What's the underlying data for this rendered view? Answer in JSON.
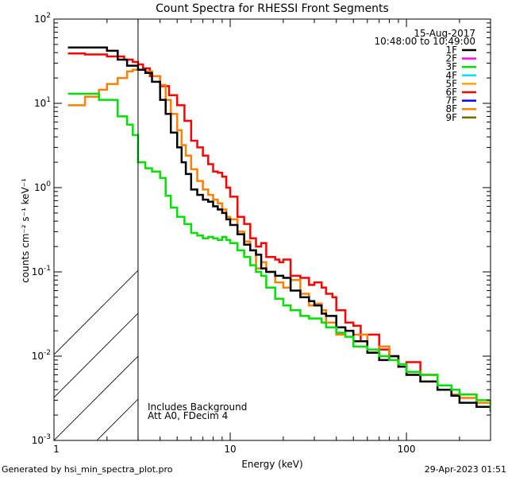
{
  "chart_data": {
    "type": "line",
    "title": "Count Spectra for RHESSI Front Segments",
    "xlabel": "Energy (keV)",
    "ylabel": "counts cm⁻² s⁻¹ keV⁻¹",
    "xscale": "log",
    "yscale": "log",
    "xlim": [
      1,
      300
    ],
    "ylim": [
      0.001,
      100
    ],
    "x_ticks": [
      {
        "v": 10,
        "label": "10"
      },
      {
        "v": 100,
        "label": "100"
      }
    ],
    "x_tick_minor": [
      2,
      3,
      4,
      5,
      6,
      7,
      8,
      9,
      20,
      30,
      40,
      50,
      60,
      70,
      80,
      90,
      200,
      300
    ],
    "y_ticks": [
      {
        "v": 0.001,
        "m": "10",
        "e": "-3"
      },
      {
        "v": 0.01,
        "m": "10",
        "e": "-2"
      },
      {
        "v": 0.1,
        "m": "10",
        "e": "-1"
      },
      {
        "v": 1,
        "m": "10",
        "e": "0"
      },
      {
        "v": 10,
        "m": "10",
        "e": "1"
      },
      {
        "v": 100,
        "m": "10",
        "e": "2"
      }
    ],
    "x_one_label": "1",
    "date": "15-Aug-2017",
    "time_range": "10:48:00 to 10:49:00",
    "hatch_boundary_kev": 3,
    "annotations": [
      "Includes Background",
      "Att A0, FDecim 4"
    ],
    "legend": [
      {
        "name": "1F",
        "color": "#000000"
      },
      {
        "name": "2F",
        "color": "#ff00ff"
      },
      {
        "name": "3F",
        "color": "#00e000"
      },
      {
        "name": "4F",
        "color": "#00e0ff"
      },
      {
        "name": "5F",
        "color": "#ffa500"
      },
      {
        "name": "6F",
        "color": "#ff0000"
      },
      {
        "name": "7F",
        "color": "#0000ff"
      },
      {
        "name": "8F",
        "color": "#ff7f00"
      },
      {
        "name": "9F",
        "color": "#707000"
      }
    ],
    "series": [
      {
        "name": "6F",
        "color": "#ff0000",
        "x": [
          1.2,
          1.5,
          2,
          2.5,
          2.8,
          3.0,
          3.2,
          3.5,
          4.0,
          4.5,
          5.0,
          5.5,
          6.0,
          6.5,
          7.0,
          7.5,
          8,
          8.5,
          9,
          9.5,
          10,
          11,
          12,
          13,
          14,
          15,
          16,
          17,
          18,
          19,
          20,
          22,
          25,
          28,
          30,
          33,
          35,
          38,
          40,
          45,
          50,
          55,
          60,
          70,
          80,
          90,
          100,
          120,
          150,
          180,
          200,
          250,
          300
        ],
        "y": [
          39,
          38,
          36,
          33,
          31,
          29,
          26,
          21,
          16,
          12.5,
          9.5,
          6.2,
          3.6,
          3.0,
          2.4,
          1.9,
          1.55,
          1.5,
          1.35,
          1.0,
          0.78,
          0.45,
          0.37,
          0.25,
          0.2,
          0.22,
          0.15,
          0.15,
          0.14,
          0.13,
          0.14,
          0.09,
          0.085,
          0.07,
          0.075,
          0.065,
          0.055,
          0.05,
          0.035,
          0.025,
          0.023,
          0.015,
          0.018,
          0.012,
          0.01,
          0.0075,
          0.0085,
          0.006,
          0.004,
          0.0035,
          0.0035,
          0.0025,
          0.0022
        ]
      },
      {
        "name": "8F",
        "color": "#ff7f00",
        "x": [
          1.2,
          1.3,
          1.5,
          1.8,
          2.0,
          2.3,
          2.6,
          2.8,
          3.0,
          3.3,
          3.6,
          4.0,
          4.3,
          4.6,
          5.0,
          5.3,
          5.6,
          6,
          6.5,
          7,
          7.5,
          8,
          8.5,
          9,
          9.5,
          10,
          11,
          12,
          13,
          14,
          15,
          16,
          18,
          20,
          22,
          25,
          28,
          30,
          33,
          35,
          40,
          45,
          50,
          60,
          70,
          80,
          90,
          100,
          120,
          150,
          180,
          200,
          250,
          300
        ],
        "y": [
          9.5,
          9.5,
          12,
          14.5,
          17,
          20,
          24,
          25,
          25,
          24,
          21,
          16.5,
          11,
          7.5,
          4.8,
          3.2,
          2.4,
          1.65,
          1.2,
          0.95,
          0.82,
          0.72,
          0.65,
          0.55,
          0.45,
          0.42,
          0.3,
          0.23,
          0.18,
          0.11,
          0.13,
          0.1,
          0.075,
          0.065,
          0.08,
          0.055,
          0.04,
          0.042,
          0.035,
          0.025,
          0.018,
          0.02,
          0.018,
          0.011,
          0.013,
          0.01,
          0.0075,
          0.006,
          0.005,
          0.004,
          0.0035,
          0.0032,
          0.0028,
          0.0025
        ]
      },
      {
        "name": "1F",
        "color": "#000000",
        "x": [
          1.2,
          1.5,
          2.0,
          2.3,
          2.6,
          3.0,
          3.3,
          3.6,
          4.0,
          4.3,
          4.6,
          5.0,
          5.3,
          5.6,
          6,
          6.5,
          7,
          7.5,
          8,
          8.5,
          9,
          9.5,
          10,
          11,
          12,
          13,
          14,
          15,
          16,
          18,
          20,
          22,
          25,
          28,
          30,
          33,
          35,
          40,
          45,
          50,
          60,
          70,
          80,
          90,
          100,
          120,
          150,
          180,
          200,
          250,
          300
        ],
        "y": [
          46,
          46,
          42,
          33,
          28,
          25,
          23,
          18,
          11,
          7.5,
          4.5,
          3.0,
          2.0,
          1.45,
          0.95,
          0.82,
          0.72,
          0.68,
          0.6,
          0.55,
          0.5,
          0.42,
          0.36,
          0.28,
          0.21,
          0.18,
          0.16,
          0.11,
          0.1,
          0.09,
          0.085,
          0.06,
          0.05,
          0.045,
          0.04,
          0.032,
          0.03,
          0.022,
          0.02,
          0.015,
          0.011,
          0.009,
          0.01,
          0.0075,
          0.006,
          0.005,
          0.004,
          0.0034,
          0.0028,
          0.0025,
          0.0024
        ]
      },
      {
        "name": "3F",
        "color": "#00e000",
        "x": [
          1.2,
          1.5,
          1.8,
          2.0,
          2.3,
          2.6,
          2.8,
          3.0,
          3.3,
          3.6,
          4.0,
          4.3,
          4.6,
          5.0,
          5.5,
          6,
          6.5,
          7,
          7.5,
          8,
          8.5,
          9,
          9.5,
          10,
          11,
          12,
          13,
          14,
          15,
          16,
          18,
          20,
          22,
          25,
          28,
          30,
          33,
          35,
          40,
          45,
          50,
          60,
          70,
          80,
          90,
          100,
          120,
          150,
          180,
          200,
          250,
          300
        ],
        "y": [
          13,
          13,
          11,
          11,
          7,
          5.6,
          4.2,
          2.0,
          1.7,
          1.55,
          1.3,
          0.8,
          0.58,
          0.45,
          0.37,
          0.29,
          0.27,
          0.25,
          0.26,
          0.25,
          0.24,
          0.26,
          0.24,
          0.22,
          0.18,
          0.15,
          0.12,
          0.1,
          0.09,
          0.065,
          0.048,
          0.04,
          0.035,
          0.03,
          0.028,
          0.028,
          0.025,
          0.022,
          0.019,
          0.017,
          0.013,
          0.012,
          0.01,
          0.009,
          0.008,
          0.0065,
          0.006,
          0.0045,
          0.004,
          0.0035,
          0.003,
          0.0023
        ]
      }
    ]
  },
  "footer": {
    "left": "Generated by hsi_min_spectra_plot.pro",
    "right": "29-Apr-2023 01:51"
  }
}
